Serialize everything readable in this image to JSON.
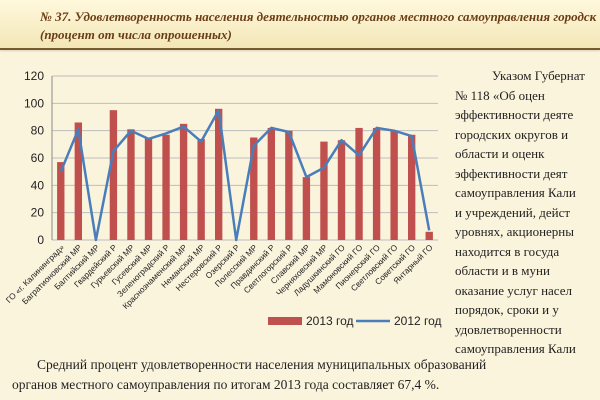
{
  "banner": {
    "line1": "№ 37. Удовлетворенность населения деятельностью органов местного самоуправления городск",
    "line2": "(процент от числа опрошенных)"
  },
  "side_text": [
    "Указом Губернат",
    "№ 118 «Об оцен",
    "эффективности деяте",
    "городских округов и",
    "области и оценк",
    "эффективности деят",
    "самоуправления Кали",
    "и учреждений, дейст",
    "уровнях, акционерны",
    "находится в госуда",
    "области и в муни",
    "оказание услуг насел",
    "порядок, сроки и у",
    "удовлетворенности",
    "самоуправления Кали"
  ],
  "bottom_text": {
    "line1": "Средний процент удовлетворенности населения муниципальных образований",
    "line2": "органов местного самоуправления по итогам 2013 года составляет 67,4 %."
  },
  "colors": {
    "bar": "#c0504d",
    "line": "#4a7ebb",
    "grid": "#bdbdbd"
  },
  "chart_data": {
    "type": "bar",
    "title": "",
    "xlabel": "",
    "ylabel": "",
    "ylim": [
      0,
      120
    ],
    "yticks": [
      "0",
      "20",
      "40",
      "60",
      "80",
      "100",
      "120"
    ],
    "categories": [
      "ГО «г. Калининград»",
      "Багратионовский МР",
      "Балтийский МР",
      "Гвардейский Р",
      "Гурьевский МР",
      "Гусевский МР",
      "Зеленоградский Р",
      "Краснознаменский МР",
      "Неманский МР",
      "Нестеровский Р",
      "Озерский Р",
      "Полесский МР",
      "Правдинский Р",
      "Светлогорский Р",
      "Славский МР",
      "Черняховский МР",
      "Ладушкинский ГО",
      "Мамоновский ГО",
      "Пионерский ГО",
      "Светловский ГО",
      "Советский ГО",
      "Янтарный ГО"
    ],
    "series": [
      {
        "name": "2013 год",
        "kind": "bar",
        "values": [
          57,
          86,
          0,
          95,
          81,
          75,
          77,
          85,
          74,
          96,
          0,
          75,
          82,
          80,
          46,
          72,
          73,
          82,
          82,
          80,
          77,
          6
        ]
      },
      {
        "name": "2012 год",
        "kind": "line",
        "values": [
          50,
          81,
          0,
          65,
          80,
          74,
          78,
          83,
          72,
          95,
          0,
          69,
          82,
          79,
          46,
          53,
          73,
          62,
          82,
          80,
          76,
          7
        ]
      }
    ],
    "legend": [
      "2013 год",
      "2012 год"
    ],
    "legend_position": "bottom"
  }
}
